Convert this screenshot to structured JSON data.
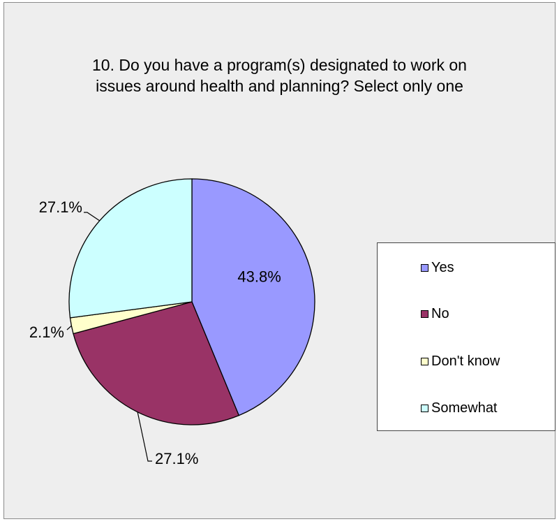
{
  "chart_data": {
    "type": "pie",
    "title": "10. Do you have a program(s) designated to work on issues around health and planning? Select only one",
    "categories": [
      "Yes",
      "No",
      "Don't know",
      "Somewhat"
    ],
    "values": [
      43.8,
      27.1,
      2.1,
      27.1
    ],
    "value_labels": [
      "43.8%",
      "27.1%",
      "2.1%",
      "27.1%"
    ],
    "colors": [
      "#9999ff",
      "#993366",
      "#ffffcc",
      "#ccffff"
    ],
    "legend_position": "right"
  }
}
